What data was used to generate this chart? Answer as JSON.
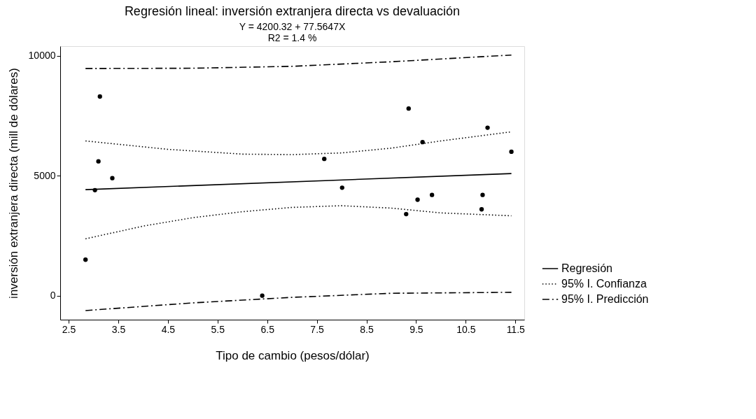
{
  "chart_data": {
    "type": "scatter",
    "title": "Regresión lineal: inversión extranjera directa vs devaluación",
    "subtitle": "Y = 4200.32 + 77.5647X\nR2 = 1.4 %",
    "xlabel": "Tipo de cambio (pesos/dólar)",
    "ylabel": "inversión extranjera directa (mill de dólares)",
    "xlim": [
      2.33,
      11.68
    ],
    "ylim": [
      -1000,
      10400
    ],
    "xticks": [
      2.5,
      3.5,
      4.5,
      5.5,
      6.5,
      7.5,
      8.5,
      9.5,
      10.5,
      11.5
    ],
    "yticks": [
      0,
      5000,
      10000
    ],
    "grid": false,
    "legend": "right",
    "series": [
      {
        "color": "#000000",
        "marker": "circle",
        "x": [
          2.84,
          3.03,
          3.13,
          3.1,
          3.38,
          6.4,
          7.65,
          8.01,
          9.35,
          9.3,
          9.53,
          9.63,
          9.82,
          10.82,
          10.84,
          10.94,
          11.42
        ],
        "values": [
          1500,
          4400,
          8300,
          5600,
          4900,
          0,
          5700,
          4500,
          7800,
          3400,
          4000,
          6400,
          4200,
          3600,
          4200,
          7000,
          6000
        ]
      },
      {
        "type": "line",
        "name": "Regresión",
        "color": "#000000",
        "marker": "none",
        "line_style": "solid",
        "x": [
          2.84,
          11.42
        ],
        "values": [
          4420,
          5090
        ]
      },
      {
        "type": "line",
        "name": "95% I. Confianza",
        "color": "#000000",
        "marker": "none",
        "line_style": "dotted",
        "x": [
          2.84,
          4.5,
          6.0,
          7.0,
          8.0,
          9.0,
          10.0,
          11.42
        ],
        "values": [
          6450,
          6100,
          5900,
          5880,
          5950,
          6150,
          6450,
          6830
        ]
      },
      {
        "type": "line",
        "color": "#000000",
        "marker": "none",
        "line_style": "dotted",
        "x": [
          2.84,
          4.0,
          5.0,
          6.0,
          7.0,
          8.0,
          9.0,
          10.0,
          11.42
        ],
        "values": [
          2370,
          2900,
          3250,
          3500,
          3680,
          3750,
          3650,
          3450,
          3330
        ]
      },
      {
        "type": "line",
        "name": "95% I. Predicción",
        "color": "#000000",
        "marker": "none",
        "line_style": "dashdot",
        "x": [
          2.84,
          5.0,
          7.0,
          9.0,
          11.42
        ],
        "values": [
          9470,
          9480,
          9560,
          9750,
          10030
        ]
      },
      {
        "type": "line",
        "color": "#000000",
        "marker": "none",
        "line_style": "dashdot",
        "x": [
          2.84,
          5.0,
          7.0,
          9.0,
          11.42
        ],
        "values": [
          -620,
          -300,
          -70,
          100,
          140
        ]
      }
    ]
  }
}
